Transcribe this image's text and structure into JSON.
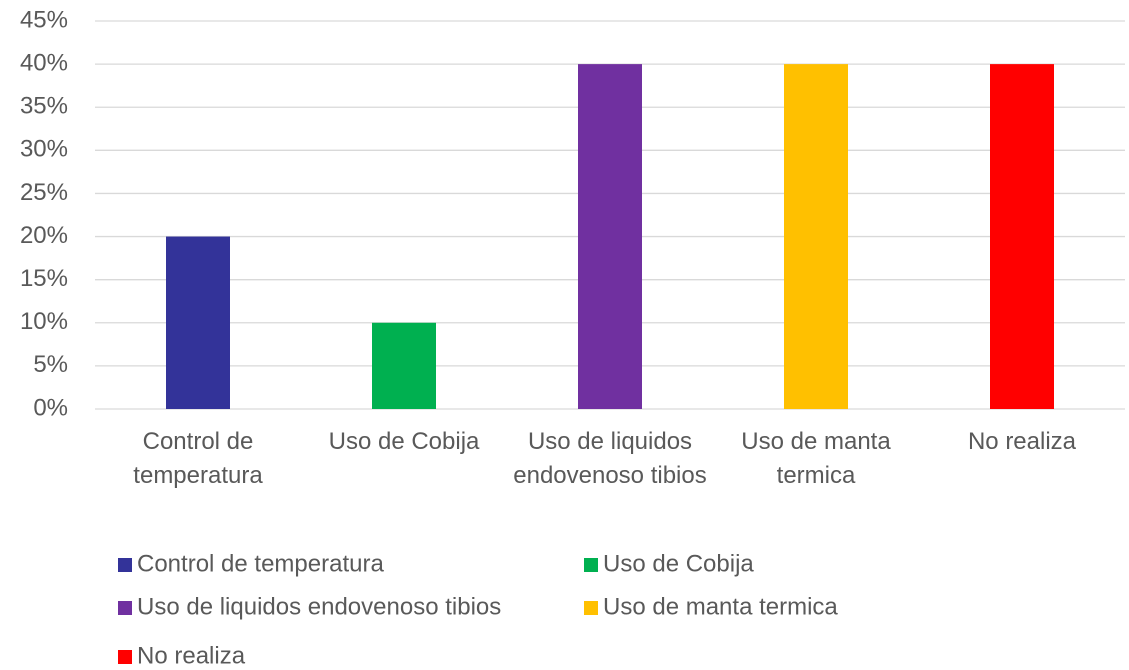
{
  "chart_data": {
    "type": "bar",
    "categories": [
      "Control de temperatura",
      "Uso de Cobija",
      "Uso de liquidos endovenoso tibios",
      "Uso de manta termica",
      "No realiza"
    ],
    "values": [
      20,
      10,
      40,
      40,
      40
    ],
    "colors": [
      "#333399",
      "#00b050",
      "#7030a0",
      "#ffc000",
      "#ff0000"
    ],
    "ylim": [
      0,
      45
    ],
    "yticks": [
      {
        "value": 0,
        "label": "0%"
      },
      {
        "value": 5,
        "label": "5%"
      },
      {
        "value": 10,
        "label": "10%"
      },
      {
        "value": 15,
        "label": "15%"
      },
      {
        "value": 20,
        "label": "20%"
      },
      {
        "value": 25,
        "label": "25%"
      },
      {
        "value": 30,
        "label": "30%"
      },
      {
        "value": 35,
        "label": "35%"
      },
      {
        "value": 40,
        "label": "40%"
      },
      {
        "value": 45,
        "label": "45%"
      }
    ],
    "grid": true,
    "legend": "bottom"
  }
}
